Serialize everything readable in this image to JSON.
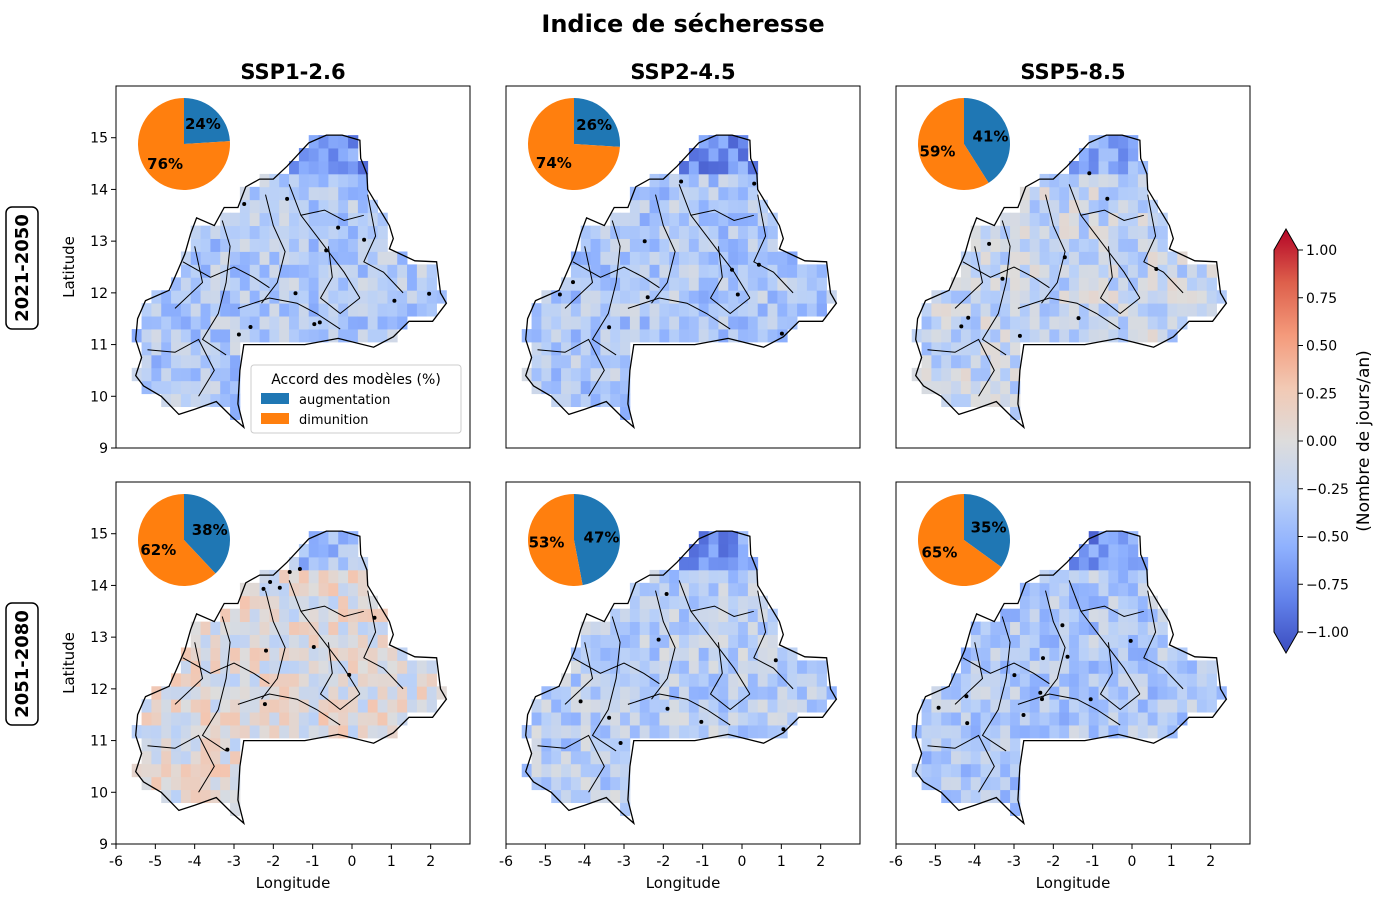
{
  "figure": {
    "title": "Indice de sécheresse",
    "columns": [
      "SSP1-2.6",
      "SSP2-4.5",
      "SSP5-8.5"
    ],
    "rows": [
      "2021-2050",
      "2051-2080"
    ]
  },
  "axes": {
    "xlabel": "Longitude",
    "ylabel": "Latitude",
    "xticks": [
      "-6",
      "-5",
      "-4",
      "-3",
      "-2",
      "-1",
      "0",
      "1",
      "2"
    ],
    "yticks": [
      "9",
      "10",
      "11",
      "12",
      "13",
      "14",
      "15"
    ],
    "xlim": [
      -6,
      3
    ],
    "ylim": [
      9,
      16
    ]
  },
  "legend": {
    "title": "Accord des modèles (%)",
    "items": [
      {
        "label": "augmentation",
        "color": "#1f77b4"
      },
      {
        "label": "dimunition",
        "color": "#ff7f0e"
      }
    ]
  },
  "colorbar": {
    "label": "(Nombre de jours/an)",
    "ticks": [
      "1.00",
      "0.75",
      "0.50",
      "0.25",
      "0.00",
      "−0.25",
      "−0.50",
      "−0.75",
      "−1.00"
    ],
    "range": [
      -1,
      1
    ],
    "colormap": "coolwarm"
  },
  "chart_data": [
    {
      "type": "pie",
      "row": "2021-2050",
      "column": "SSP1-2.6",
      "augmentation": 24,
      "dimunition": 76,
      "labels": [
        "24%",
        "76%"
      ],
      "trend": -0.3
    },
    {
      "type": "pie",
      "row": "2021-2050",
      "column": "SSP2-4.5",
      "augmentation": 26,
      "dimunition": 74,
      "labels": [
        "26%",
        "74%"
      ],
      "trend": -0.3
    },
    {
      "type": "pie",
      "row": "2021-2050",
      "column": "SSP5-8.5",
      "augmentation": 41,
      "dimunition": 59,
      "labels": [
        "41%",
        "59%"
      ],
      "trend": -0.18
    },
    {
      "type": "pie",
      "row": "2051-2080",
      "column": "SSP1-2.6",
      "augmentation": 38,
      "dimunition": 62,
      "labels": [
        "38%",
        "62%"
      ],
      "trend": 0.0
    },
    {
      "type": "pie",
      "row": "2051-2080",
      "column": "SSP2-4.5",
      "augmentation": 47,
      "dimunition": 53,
      "labels": [
        "47%",
        "53%"
      ],
      "trend": -0.25
    },
    {
      "type": "pie",
      "row": "2051-2080",
      "column": "SSP5-8.5",
      "augmentation": 35,
      "dimunition": 65,
      "labels": [
        "35%",
        "65%"
      ],
      "trend": -0.3
    }
  ]
}
